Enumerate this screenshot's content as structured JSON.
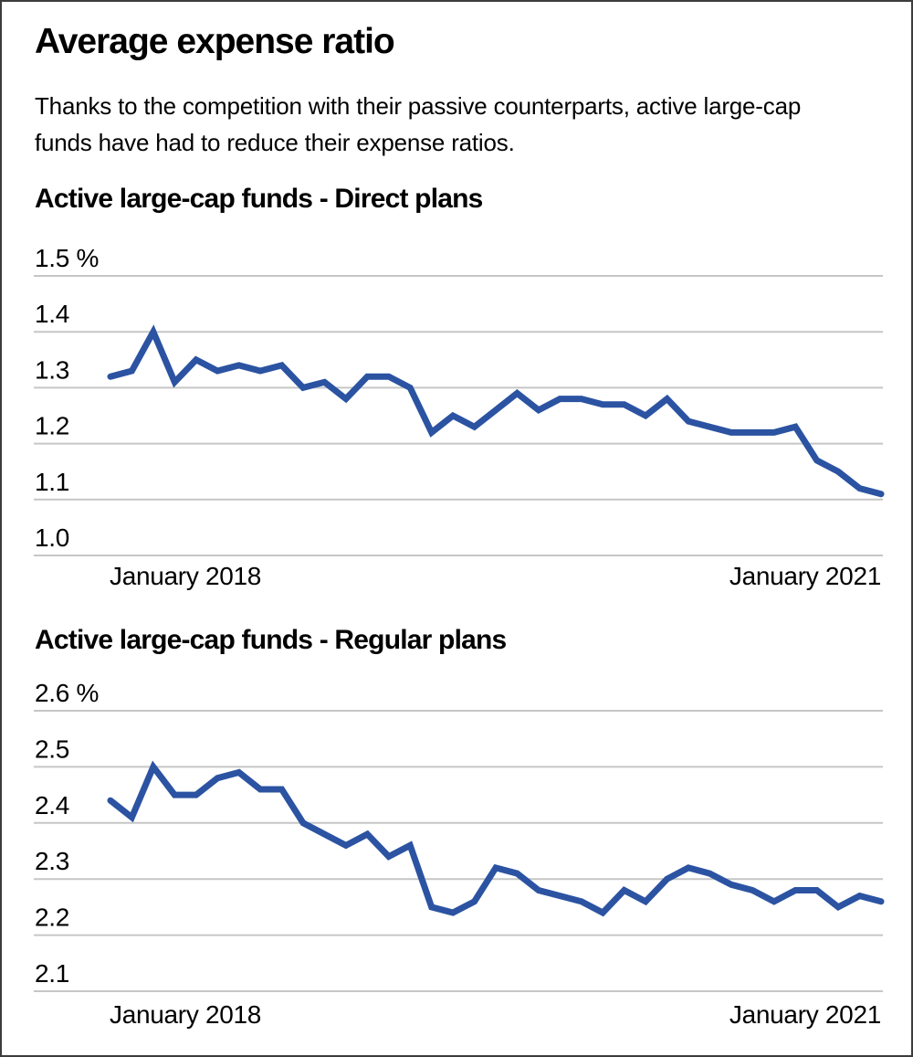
{
  "page": {
    "title": "Average expense ratio",
    "subtitle_lines": [
      "Thanks to the competition with their passive counterparts, active large-cap",
      "funds have had to reduce their expense ratios."
    ]
  },
  "colors": {
    "line_blue": "#2b53a2",
    "gridline_gray": "#c6c6c6",
    "text_black": "#000000",
    "frame_border": "#3c3c3c"
  },
  "chart_data": [
    {
      "type": "line",
      "title": "Active large-cap funds - Direct plans",
      "x_frequency": "monthly",
      "x_tick_labels": [
        "January 2018",
        "January 2021"
      ],
      "y_unit": "%",
      "y_ticks": [
        1.5,
        1.4,
        1.3,
        1.2,
        1.1,
        1.0
      ],
      "y_tick_labels": [
        "1.5 %",
        "1.4",
        "1.3",
        "1.2",
        "1.1",
        "1.0"
      ],
      "ylim": [
        0.95,
        1.55
      ],
      "grid": "horizontal",
      "legend": "none",
      "series": [
        {
          "name": "Average expense ratio - Direct plans (%)",
          "values": [
            1.32,
            1.33,
            1.4,
            1.31,
            1.35,
            1.33,
            1.34,
            1.33,
            1.34,
            1.3,
            1.31,
            1.28,
            1.32,
            1.32,
            1.3,
            1.22,
            1.25,
            1.23,
            1.26,
            1.29,
            1.26,
            1.28,
            1.28,
            1.27,
            1.27,
            1.25,
            1.28,
            1.24,
            1.23,
            1.22,
            1.22,
            1.22,
            1.23,
            1.17,
            1.15,
            1.12,
            1.11
          ]
        }
      ]
    },
    {
      "type": "line",
      "title": "Active large-cap funds - Regular plans",
      "x_frequency": "monthly",
      "x_tick_labels": [
        "January 2018",
        "January 2021"
      ],
      "y_unit": "%",
      "y_ticks": [
        2.6,
        2.5,
        2.4,
        2.3,
        2.2,
        2.1
      ],
      "y_tick_labels": [
        "2.6 %",
        "2.5",
        "2.4",
        "2.3",
        "2.2",
        "2.1"
      ],
      "ylim": [
        2.05,
        2.65
      ],
      "grid": "horizontal",
      "legend": "none",
      "series": [
        {
          "name": "Average expense ratio - Regular plans (%)",
          "values": [
            2.44,
            2.41,
            2.5,
            2.45,
            2.45,
            2.48,
            2.49,
            2.46,
            2.46,
            2.4,
            2.38,
            2.36,
            2.38,
            2.34,
            2.36,
            2.25,
            2.24,
            2.26,
            2.32,
            2.31,
            2.28,
            2.27,
            2.26,
            2.24,
            2.28,
            2.26,
            2.3,
            2.32,
            2.31,
            2.29,
            2.28,
            2.26,
            2.28,
            2.28,
            2.25,
            2.27,
            2.26
          ]
        }
      ]
    }
  ]
}
